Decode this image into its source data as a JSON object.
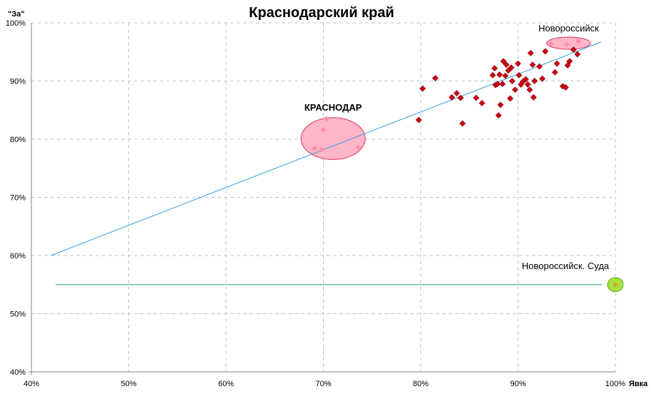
{
  "chart_data": {
    "type": "scatter",
    "title": "Краснодарский край",
    "xlabel": "Явка",
    "ylabel": "\"За\"",
    "xlim": [
      40,
      100
    ],
    "ylim": [
      40,
      100
    ],
    "x_ticks": [
      "40%",
      "50%",
      "60%",
      "70%",
      "80%",
      "90%",
      "100%"
    ],
    "y_ticks": [
      "40%",
      "50%",
      "60%",
      "70%",
      "80%",
      "90%",
      "100%"
    ],
    "grid": true,
    "colors": {
      "points": "#cc0011",
      "trend": "#2b9bd8",
      "flat_line": "#1aa57a",
      "highlight_fill": "#ffb6c8",
      "highlight_stroke": "#e05070",
      "suda_fill": "#a8e040",
      "suda_stroke": "#70b020",
      "grid": "#b4c8dc"
    },
    "points": [
      [
        81.5,
        90.5
      ],
      [
        80.2,
        88.7
      ],
      [
        79.8,
        83.3
      ],
      [
        83.2,
        87.2
      ],
      [
        83.7,
        87.9
      ],
      [
        84.1,
        87.1
      ],
      [
        84.3,
        82.7
      ],
      [
        85.7,
        87.1
      ],
      [
        86.3,
        86.2
      ],
      [
        87.4,
        91.0
      ],
      [
        87.6,
        92.2
      ],
      [
        87.7,
        89.3
      ],
      [
        87.9,
        89.5
      ],
      [
        88.0,
        84.1
      ],
      [
        88.1,
        91.1
      ],
      [
        88.2,
        85.9
      ],
      [
        88.4,
        89.5
      ],
      [
        88.5,
        93.4
      ],
      [
        88.7,
        90.9
      ],
      [
        88.8,
        92.8
      ],
      [
        89.0,
        91.8
      ],
      [
        89.2,
        87.0
      ],
      [
        89.3,
        92.3
      ],
      [
        89.4,
        90.0
      ],
      [
        89.7,
        88.5
      ],
      [
        90.0,
        93.0
      ],
      [
        90.1,
        91.0
      ],
      [
        90.3,
        89.4
      ],
      [
        90.5,
        89.9
      ],
      [
        90.8,
        90.3
      ],
      [
        91.0,
        89.4
      ],
      [
        91.2,
        88.5
      ],
      [
        91.3,
        94.8
      ],
      [
        91.5,
        92.8
      ],
      [
        91.6,
        87.2
      ],
      [
        91.7,
        90.0
      ],
      [
        92.2,
        92.5
      ],
      [
        92.5,
        90.4
      ],
      [
        92.8,
        95.1
      ],
      [
        93.8,
        91.5
      ],
      [
        94.0,
        93.0
      ],
      [
        94.6,
        89.1
      ],
      [
        94.9,
        88.9
      ],
      [
        95.1,
        92.7
      ],
      [
        95.3,
        93.4
      ],
      [
        95.7,
        95.4
      ],
      [
        96.1,
        94.6
      ],
      [
        69.1,
        78.4
      ],
      [
        69.8,
        78.2
      ],
      [
        70.0,
        81.6
      ],
      [
        70.3,
        83.5
      ],
      [
        73.6,
        78.6
      ],
      [
        93.4,
        96.4
      ],
      [
        95.0,
        96.3
      ],
      [
        96.2,
        96.8
      ],
      [
        100.0,
        55.0
      ]
    ],
    "trend_line": [
      [
        42.0,
        60.0
      ],
      [
        98.5,
        96.7
      ]
    ],
    "flat_line": [
      [
        42.5,
        55.0
      ],
      [
        98.6,
        55.0
      ]
    ],
    "annotations": [
      {
        "text": "КРАСНОДАР",
        "x": 71.0,
        "y": 80.1,
        "rx": 3.3,
        "ry": 3.6
      },
      {
        "text": "Новороссийск",
        "x": 95.2,
        "y": 96.5,
        "rx": 2.25,
        "ry": 1.05
      },
      {
        "text": "Новороссийск. Суда",
        "x": 100.0,
        "y": 55.0,
        "rx": 0.8,
        "ry": 1.2
      }
    ]
  }
}
